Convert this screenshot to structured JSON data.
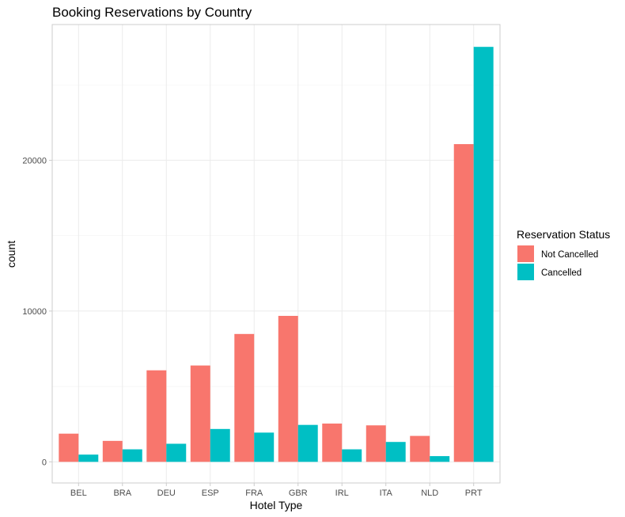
{
  "chart_data": {
    "type": "bar",
    "title": "Booking Reservations by Country",
    "xlabel": "Hotel Type",
    "ylabel": "count",
    "categories": [
      "BEL",
      "BRA",
      "DEU",
      "ESP",
      "FRA",
      "GBR",
      "IRL",
      "ITA",
      "NLD",
      "PRT"
    ],
    "series": [
      {
        "name": "Not Cancelled",
        "color": "#F8766D",
        "values": [
          1870,
          1390,
          6070,
          6390,
          8480,
          9680,
          2540,
          2420,
          1720,
          21070
        ]
      },
      {
        "name": "Cancelled",
        "color": "#00BFC4",
        "values": [
          480,
          830,
          1200,
          2180,
          1940,
          2450,
          830,
          1320,
          380,
          27520
        ]
      }
    ],
    "ylim": [
      -1400,
      29000
    ],
    "yticks": [
      0,
      10000,
      20000
    ],
    "grid": true,
    "legend": {
      "title": "Reservation Status",
      "position": "right"
    }
  }
}
